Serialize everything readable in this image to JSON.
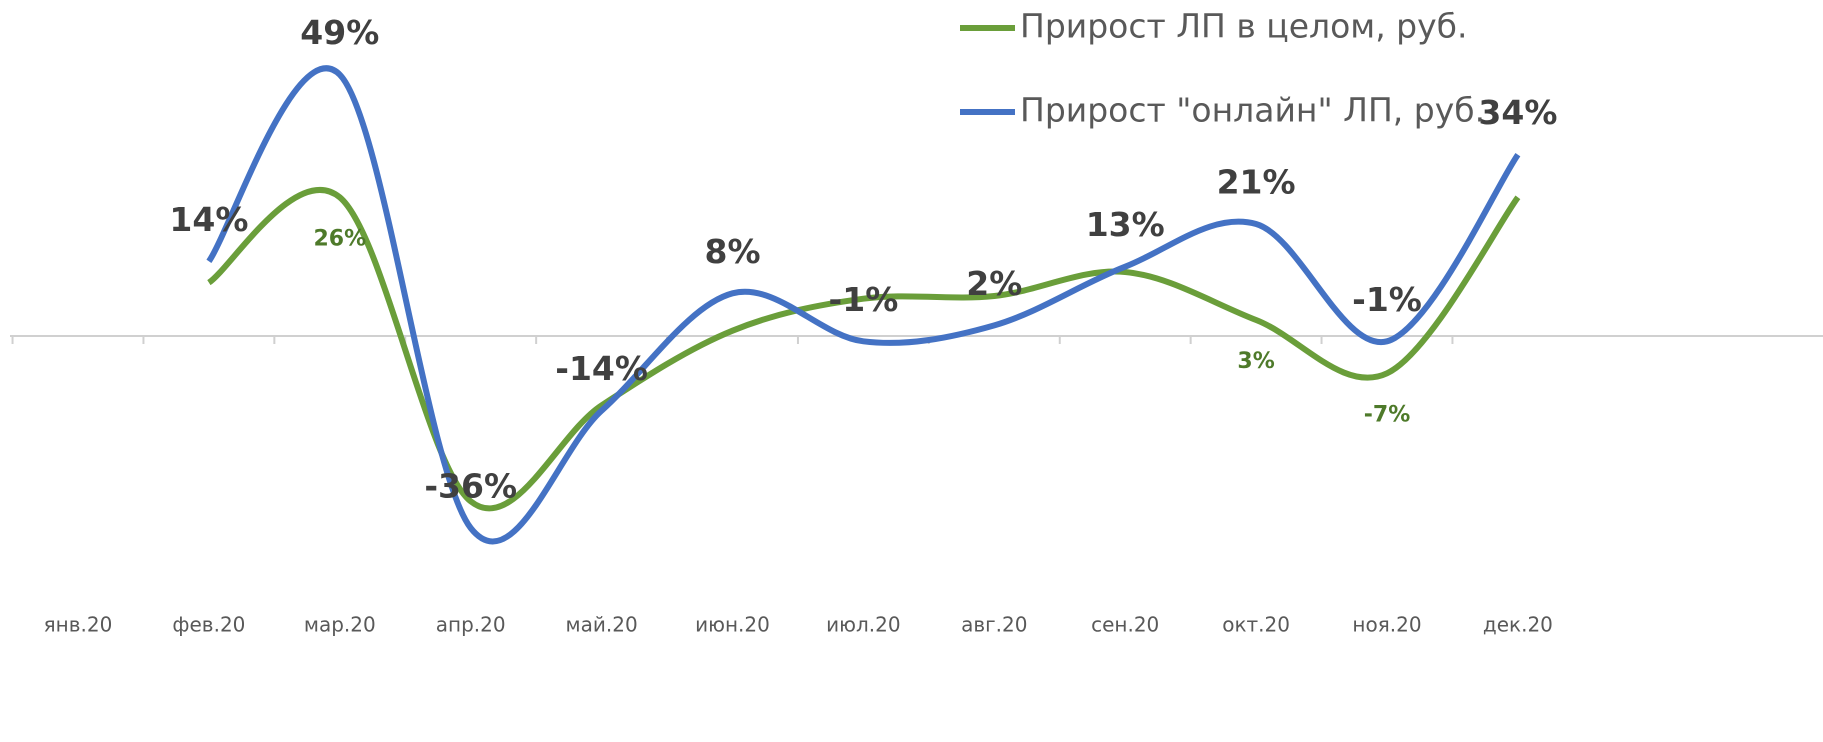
{
  "chart_data": {
    "type": "line",
    "categories": [
      "янв.20",
      "фев.20",
      "мар.20",
      "апр.20",
      "май.20",
      "июн.20",
      "июл.20",
      "авг.20",
      "сен.20",
      "окт.20",
      "ноя.20",
      "дек.20"
    ],
    "series": [
      {
        "name": "Прирост ЛП в целом, руб.",
        "color": "#6a9e3a",
        "values": [
          null,
          10,
          26,
          -31,
          -13,
          1,
          7,
          7.5,
          12,
          3,
          -7,
          26
        ],
        "value_labels": [
          null,
          null,
          "26%",
          null,
          null,
          null,
          null,
          null,
          null,
          "3%",
          "-7%",
          null
        ]
      },
      {
        "name": "Прирост \"онлайн\" ЛП, руб.",
        "color": "#4472c4",
        "values": [
          null,
          14,
          49,
          -36,
          -14,
          8,
          -1,
          2,
          13,
          21,
          -1,
          34
        ],
        "value_labels": [
          null,
          "14%",
          "49%",
          "-36%",
          "-14%",
          "8%",
          "-1%",
          "2%",
          "13%",
          "21%",
          "-1%",
          "34%"
        ]
      }
    ],
    "ylim": [
      -48,
      63
    ]
  }
}
